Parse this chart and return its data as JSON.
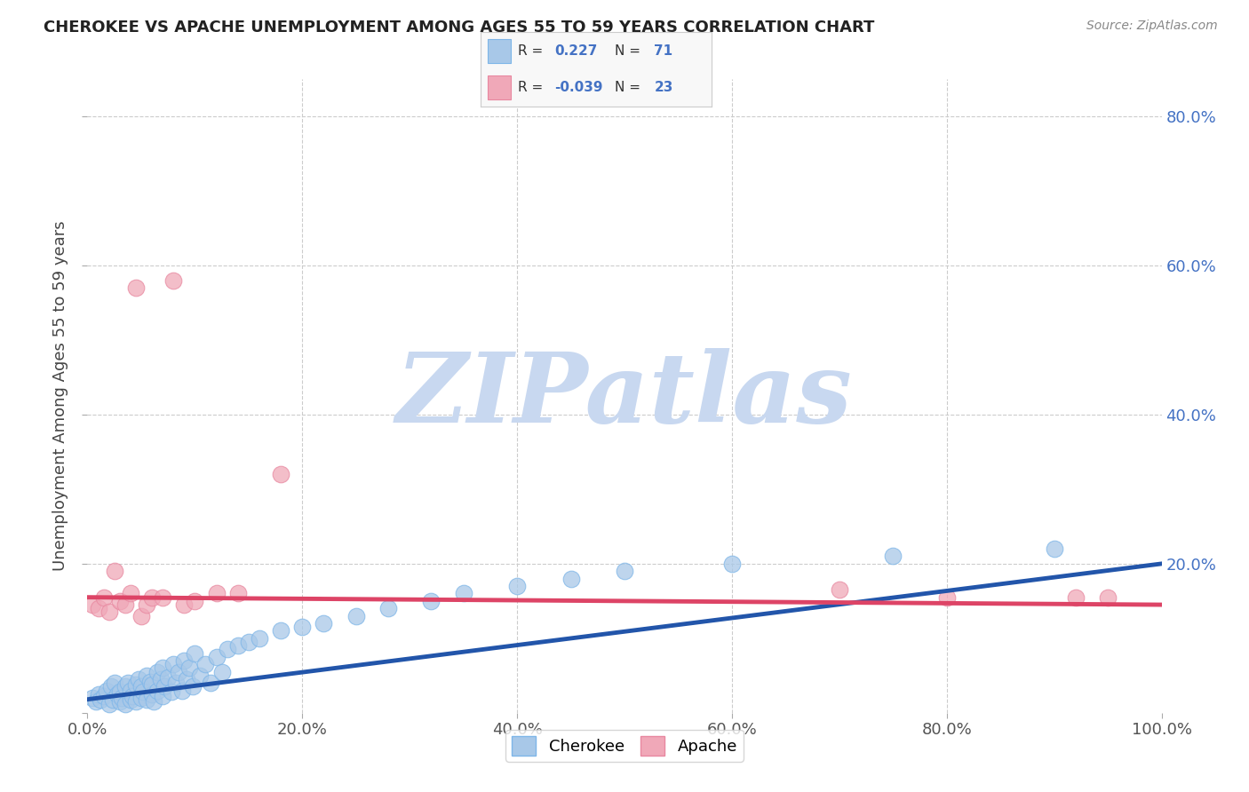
{
  "title": "CHEROKEE VS APACHE UNEMPLOYMENT AMONG AGES 55 TO 59 YEARS CORRELATION CHART",
  "source": "Source: ZipAtlas.com",
  "ylabel": "Unemployment Among Ages 55 to 59 years",
  "xlim": [
    0,
    1.0
  ],
  "ylim": [
    0,
    0.85
  ],
  "xticks": [
    0.0,
    0.2,
    0.4,
    0.6,
    0.8,
    1.0
  ],
  "ytick_right": [
    0.2,
    0.4,
    0.6,
    0.8
  ],
  "xtick_labels": [
    "0.0%",
    "20.0%",
    "40.0%",
    "60.0%",
    "80.0%",
    "100.0%"
  ],
  "ytick_labels_right": [
    "20.0%",
    "40.0%",
    "60.0%",
    "80.0%"
  ],
  "cherokee_color": "#A8C8E8",
  "apache_color": "#F0A8B8",
  "cherokee_edge_color": "#7EB6E8",
  "apache_edge_color": "#E888A0",
  "cherokee_line_color": "#2255AA",
  "apache_line_color": "#DD4466",
  "r_cherokee": 0.227,
  "n_cherokee": 71,
  "r_apache": -0.039,
  "n_apache": 23,
  "watermark": "ZIPatlas",
  "watermark_color": "#C8D8F0",
  "background_color": "#FFFFFF",
  "grid_color": "#CCCCCC",
  "cherokee_x": [
    0.005,
    0.008,
    0.01,
    0.012,
    0.015,
    0.018,
    0.02,
    0.022,
    0.024,
    0.025,
    0.028,
    0.03,
    0.03,
    0.032,
    0.035,
    0.035,
    0.038,
    0.04,
    0.04,
    0.042,
    0.045,
    0.045,
    0.048,
    0.05,
    0.05,
    0.052,
    0.055,
    0.055,
    0.058,
    0.06,
    0.06,
    0.062,
    0.065,
    0.065,
    0.068,
    0.07,
    0.07,
    0.072,
    0.075,
    0.078,
    0.08,
    0.082,
    0.085,
    0.088,
    0.09,
    0.092,
    0.095,
    0.098,
    0.1,
    0.105,
    0.11,
    0.115,
    0.12,
    0.125,
    0.13,
    0.14,
    0.15,
    0.16,
    0.18,
    0.2,
    0.22,
    0.25,
    0.28,
    0.32,
    0.35,
    0.4,
    0.45,
    0.5,
    0.6,
    0.75,
    0.9
  ],
  "cherokee_y": [
    0.02,
    0.015,
    0.025,
    0.018,
    0.022,
    0.03,
    0.012,
    0.035,
    0.018,
    0.04,
    0.025,
    0.015,
    0.028,
    0.02,
    0.035,
    0.012,
    0.04,
    0.018,
    0.03,
    0.022,
    0.038,
    0.015,
    0.045,
    0.02,
    0.035,
    0.028,
    0.05,
    0.018,
    0.042,
    0.025,
    0.038,
    0.015,
    0.055,
    0.03,
    0.045,
    0.022,
    0.06,
    0.035,
    0.048,
    0.028,
    0.065,
    0.04,
    0.055,
    0.03,
    0.07,
    0.045,
    0.06,
    0.035,
    0.08,
    0.05,
    0.065,
    0.04,
    0.075,
    0.055,
    0.085,
    0.09,
    0.095,
    0.1,
    0.11,
    0.115,
    0.12,
    0.13,
    0.14,
    0.15,
    0.16,
    0.17,
    0.18,
    0.19,
    0.2,
    0.21,
    0.22
  ],
  "apache_x": [
    0.005,
    0.01,
    0.015,
    0.02,
    0.025,
    0.03,
    0.035,
    0.04,
    0.045,
    0.05,
    0.055,
    0.06,
    0.07,
    0.08,
    0.09,
    0.1,
    0.12,
    0.14,
    0.18,
    0.7,
    0.8,
    0.92,
    0.95
  ],
  "apache_y": [
    0.145,
    0.14,
    0.155,
    0.135,
    0.19,
    0.15,
    0.145,
    0.16,
    0.57,
    0.13,
    0.145,
    0.155,
    0.155,
    0.58,
    0.145,
    0.15,
    0.16,
    0.16,
    0.32,
    0.165,
    0.155,
    0.155,
    0.155
  ],
  "cherokee_line_x": [
    0.0,
    1.0
  ],
  "cherokee_line_y": [
    0.018,
    0.2
  ],
  "apache_line_x": [
    0.0,
    1.0
  ],
  "apache_line_y": [
    0.155,
    0.145
  ]
}
